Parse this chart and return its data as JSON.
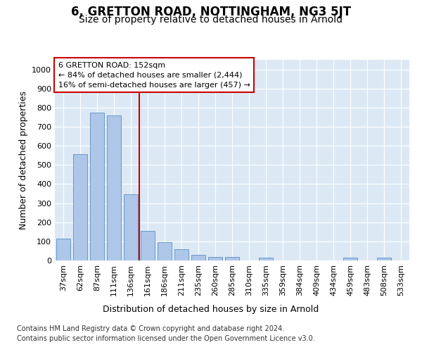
{
  "title": "6, GRETTON ROAD, NOTTINGHAM, NG3 5JT",
  "subtitle": "Size of property relative to detached houses in Arnold",
  "xlabel": "Distribution of detached houses by size in Arnold",
  "ylabel": "Number of detached properties",
  "categories": [
    "37sqm",
    "62sqm",
    "87sqm",
    "111sqm",
    "136sqm",
    "161sqm",
    "186sqm",
    "211sqm",
    "235sqm",
    "260sqm",
    "285sqm",
    "310sqm",
    "335sqm",
    "359sqm",
    "384sqm",
    "409sqm",
    "434sqm",
    "459sqm",
    "483sqm",
    "508sqm",
    "533sqm"
  ],
  "values": [
    113,
    555,
    775,
    760,
    345,
    155,
    95,
    58,
    30,
    20,
    18,
    0,
    15,
    0,
    0,
    0,
    0,
    15,
    0,
    15,
    0
  ],
  "bar_color": "#aec6e8",
  "bar_edge_color": "#5a8fc2",
  "vline_color": "#cc0000",
  "vline_x_pos": 4.5,
  "annotation_text": "6 GRETTON ROAD: 152sqm\n← 84% of detached houses are smaller (2,444)\n16% of semi-detached houses are larger (457) →",
  "annotation_box_color": "#ffffff",
  "annotation_box_edge": "#cc0000",
  "footnote1": "Contains HM Land Registry data © Crown copyright and database right 2024.",
  "footnote2": "Contains public sector information licensed under the Open Government Licence v3.0.",
  "ylim": [
    0,
    1050
  ],
  "yticks": [
    0,
    100,
    200,
    300,
    400,
    500,
    600,
    700,
    800,
    900,
    1000
  ],
  "bg_color": "#dce9f5",
  "fig_bg": "#ffffff",
  "title_fontsize": 12,
  "subtitle_fontsize": 10,
  "ylabel_fontsize": 9,
  "xlabel_fontsize": 9,
  "tick_fontsize": 8,
  "annot_fontsize": 8
}
